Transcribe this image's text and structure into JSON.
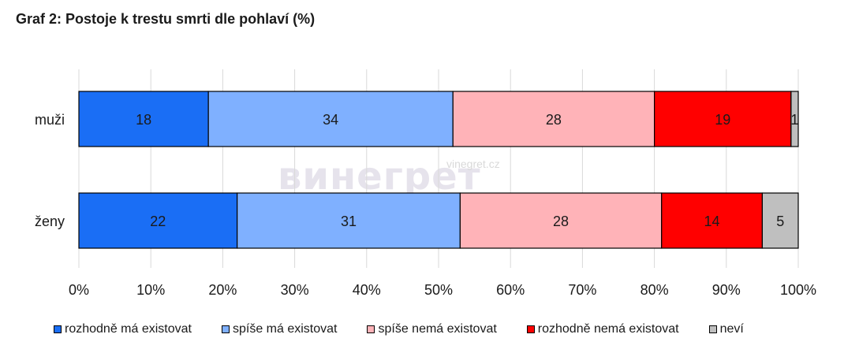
{
  "title": "Graf 2: Postoje k trestu smrti dle pohlaví (%)",
  "watermark": {
    "brand": "винегрет",
    "url": "vinegret.cz"
  },
  "chart_data": {
    "type": "bar",
    "orientation": "horizontal",
    "stacked": true,
    "categories": [
      "muži",
      "ženy"
    ],
    "series": [
      {
        "name": "rozhodně má existovat",
        "color": "#1a6ef5",
        "values": [
          18,
          22
        ]
      },
      {
        "name": "spíše má existovat",
        "color": "#7fb0ff",
        "values": [
          34,
          31
        ]
      },
      {
        "name": "spíše nemá existovat",
        "color": "#ffb3b8",
        "values": [
          28,
          28
        ]
      },
      {
        "name": "rozhodně nemá existovat",
        "color": "#ff0000",
        "values": [
          19,
          14
        ]
      },
      {
        "name": "neví",
        "color": "#bfbfbf",
        "values": [
          1,
          5
        ]
      }
    ],
    "xlim": [
      0,
      100
    ],
    "xticks": [
      "0%",
      "10%",
      "20%",
      "30%",
      "40%",
      "50%",
      "60%",
      "70%",
      "80%",
      "90%",
      "100%"
    ],
    "grid": true,
    "legend_position": "bottom"
  }
}
